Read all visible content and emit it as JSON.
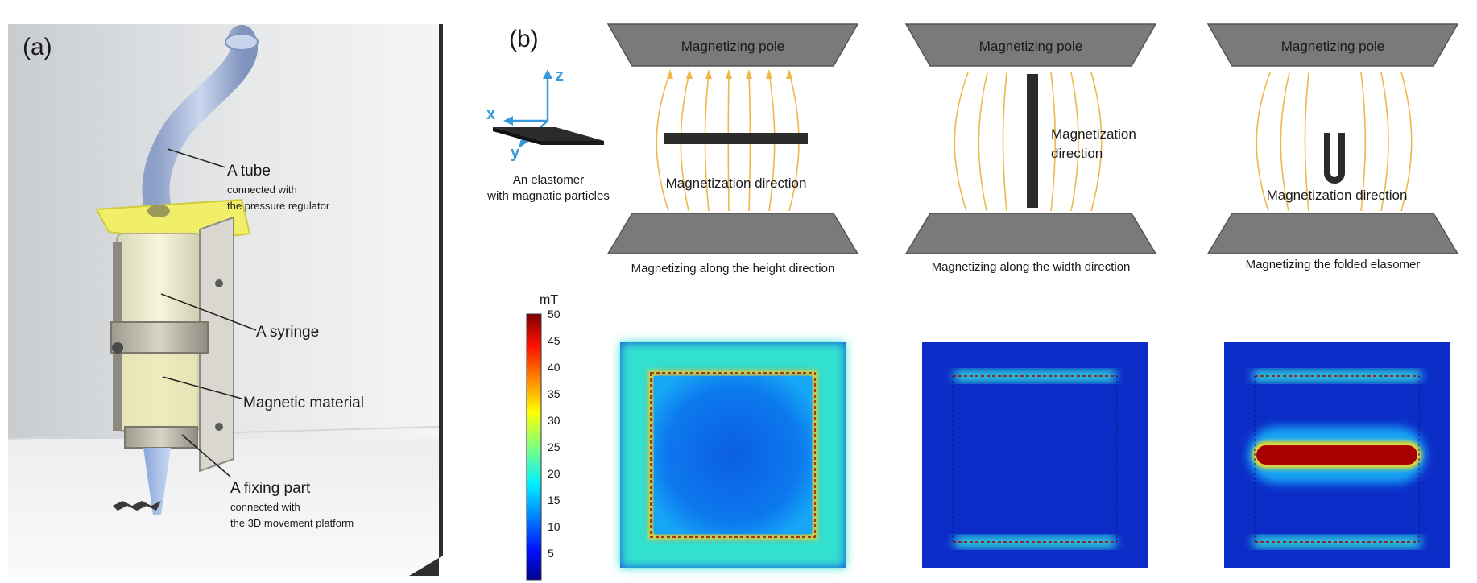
{
  "panel_a": {
    "label": "(a)",
    "callouts": {
      "tube": {
        "title": "A tube",
        "sub1": "connected with",
        "sub2": "the pressure regulator"
      },
      "syringe": {
        "title": "A syringe"
      },
      "magnetic": {
        "title": "Magnetic material"
      },
      "fixing": {
        "title": "A fixing part",
        "sub1": "connected with",
        "sub2": "the 3D movement platform"
      }
    }
  },
  "panel_b": {
    "label": "(b)",
    "axes": {
      "x": "x",
      "y": "y",
      "z": "z"
    },
    "elastomer_caption": {
      "line1": "An elastomer",
      "line2": "with magnatic particles"
    },
    "setups": [
      {
        "pole_top": "Magnetizing pole",
        "direction_label": "Magnetization direction",
        "caption": "Magnetizing along the height direction"
      },
      {
        "pole_top": "Magnetizing pole",
        "direction_line1": "Magnetization",
        "direction_line2": "direction",
        "caption": "Magnetizing along the width direction"
      },
      {
        "pole_top": "Magnetizing pole",
        "direction_label": "Magnetization direction",
        "caption": "Magnetizing the folded elasomer"
      }
    ],
    "colorbar": {
      "unit": "mT",
      "ticks": [
        "50",
        "45",
        "40",
        "35",
        "30",
        "25",
        "20",
        "15",
        "10",
        "5"
      ],
      "min": 0,
      "max": 50
    }
  },
  "colors": {
    "pole": "#7a7a7a",
    "field_line": "#f0b84a",
    "sample": "#2b2b2b",
    "axis_blue": "#3a9ad9",
    "map_bg": "#0c2cc8",
    "hot": "#a80000"
  }
}
